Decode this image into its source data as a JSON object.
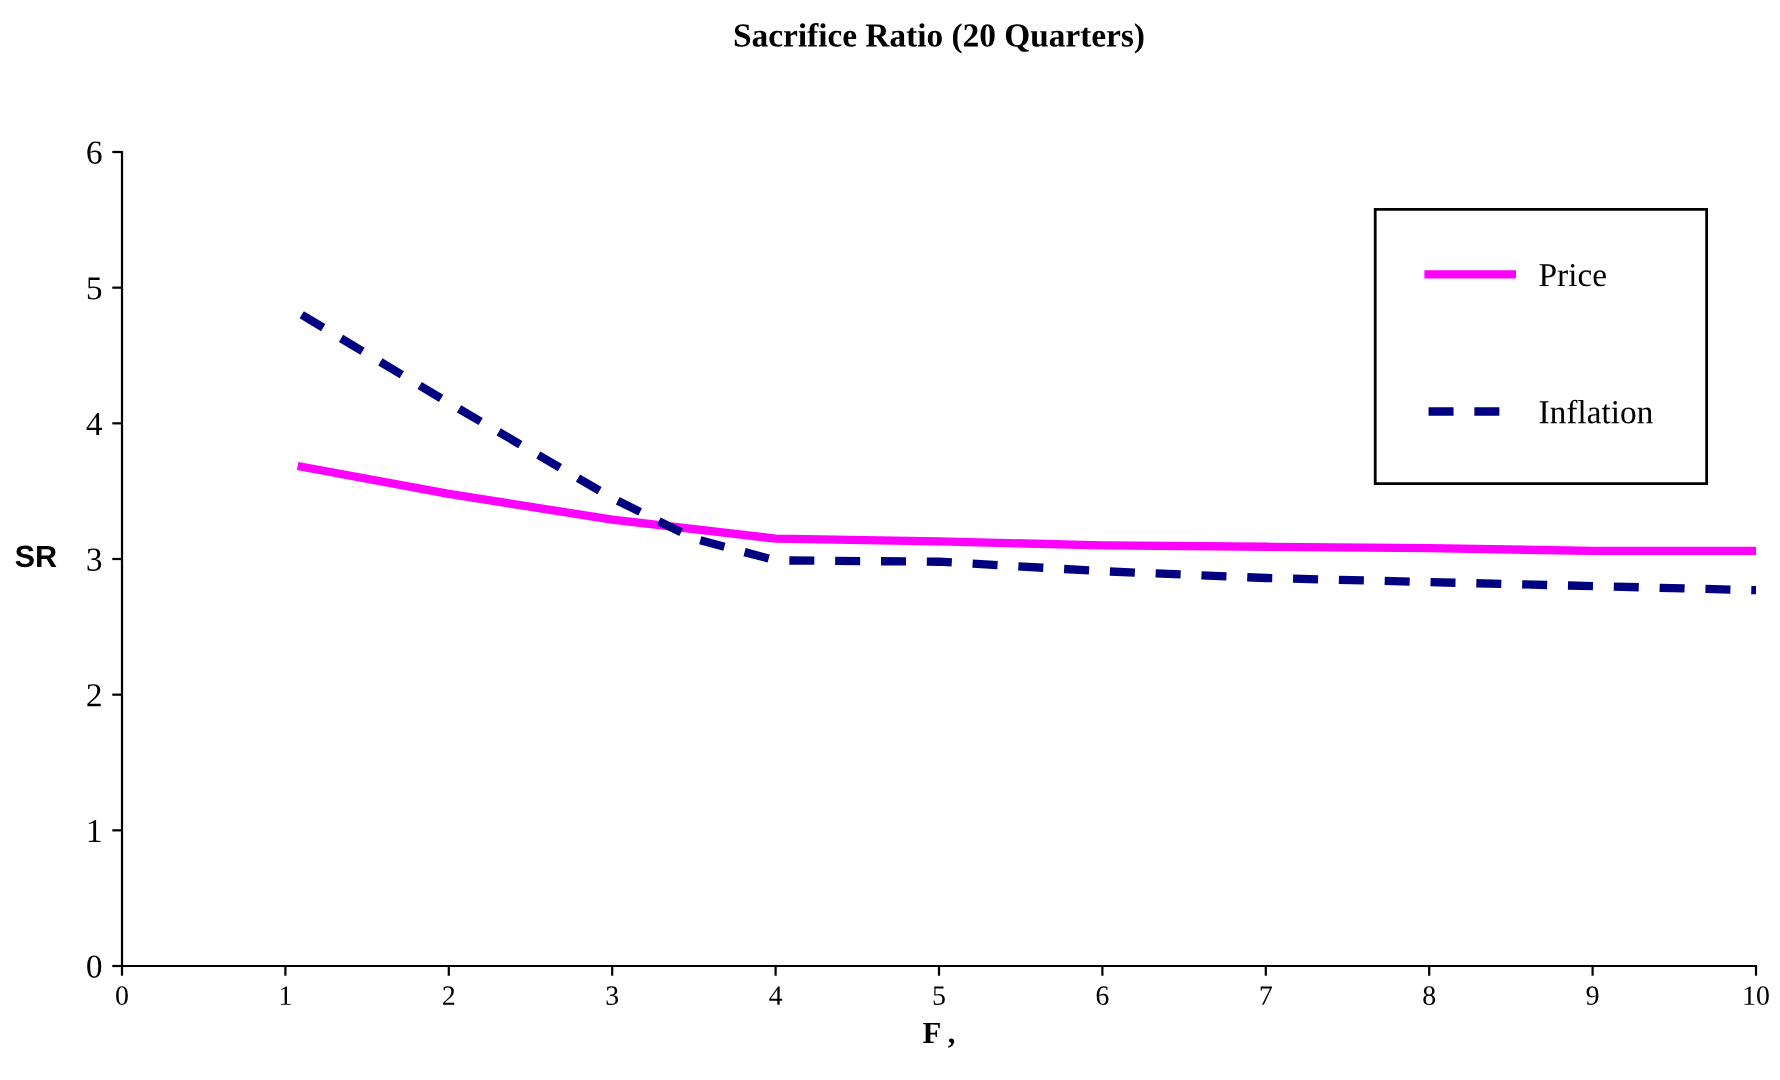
{
  "chart_data": {
    "type": "line",
    "title": "Sacrifice Ratio (20 Quarters)",
    "xlabel": "F ,",
    "ylabel": "SR",
    "xlim": [
      0,
      10
    ],
    "xticks": [
      0,
      1,
      2,
      3,
      4,
      5,
      6,
      7,
      8,
      9,
      10
    ],
    "ylim": [
      0,
      6
    ],
    "yticks": [
      0,
      1,
      2,
      3,
      4,
      5,
      6
    ],
    "grid": false,
    "legend": "top right",
    "series": [
      {
        "name": "Price",
        "color": "#ff00ff",
        "line_style": "solid",
        "x": [
          1.1,
          2,
          3,
          4,
          5,
          6,
          7,
          8,
          9,
          10
        ],
        "values": [
          3.68,
          3.48,
          3.29,
          3.15,
          3.13,
          3.1,
          3.09,
          3.08,
          3.06,
          3.06
        ]
      },
      {
        "name": "Inflation",
        "color": "#000080",
        "line_style": "dashed",
        "x": [
          1.1,
          2,
          3,
          3.5,
          4,
          5,
          6,
          7,
          8,
          9,
          10
        ],
        "values": [
          4.8,
          4.15,
          3.45,
          3.15,
          2.99,
          2.98,
          2.91,
          2.86,
          2.83,
          2.8,
          2.77
        ]
      }
    ]
  }
}
